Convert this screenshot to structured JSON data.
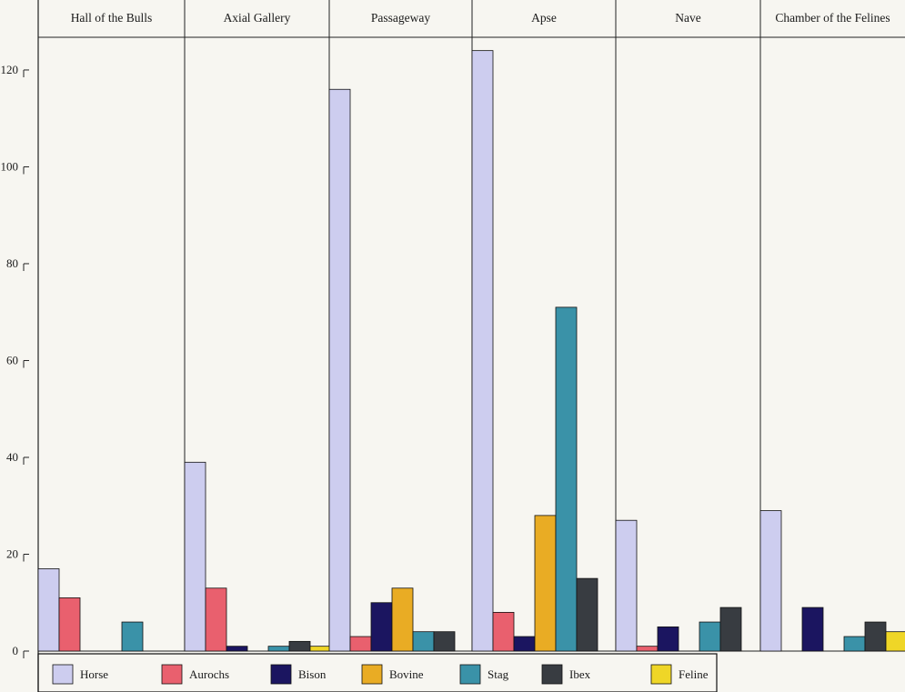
{
  "chart_data": {
    "type": "bar",
    "categories": [
      "Hall of the Bulls",
      "Axial Gallery",
      "Passageway",
      "Apse",
      "Nave",
      "Chamber of the Felines"
    ],
    "series": [
      {
        "name": "Horse",
        "color": "#cdcdef",
        "values": [
          17,
          39,
          116,
          124,
          27,
          29
        ]
      },
      {
        "name": "Aurochs",
        "color": "#e9606e",
        "values": [
          11,
          13,
          3,
          8,
          1,
          0
        ]
      },
      {
        "name": "Bison",
        "color": "#1b1560",
        "values": [
          0,
          1,
          10,
          3,
          5,
          9
        ]
      },
      {
        "name": "Bovine",
        "color": "#e9ac24",
        "values": [
          0,
          0,
          13,
          28,
          0,
          0
        ]
      },
      {
        "name": "Stag",
        "color": "#3a92a8",
        "values": [
          6,
          1,
          4,
          71,
          6,
          3
        ]
      },
      {
        "name": "Ibex",
        "color": "#383c41",
        "values": [
          0,
          2,
          4,
          15,
          9,
          6
        ]
      },
      {
        "name": "Feline",
        "color": "#efd627",
        "values": [
          0,
          1,
          0,
          0,
          0,
          4
        ]
      }
    ],
    "yticks": [
      0,
      20,
      40,
      60,
      80,
      100,
      120
    ],
    "ylim": [
      0,
      126
    ],
    "legend_position": "bottom-left",
    "title": "",
    "xlabel": "",
    "ylabel": ""
  }
}
